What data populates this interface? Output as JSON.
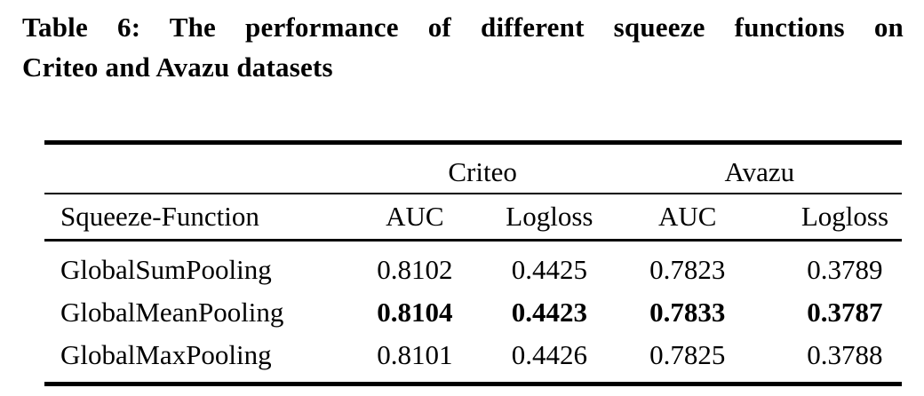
{
  "title": {
    "line1": "Table 6: The performance of different squeeze functions on",
    "line2": "Criteo and Avazu datasets"
  },
  "table": {
    "group_headers": {
      "criteo": "Criteo",
      "avazu": "Avazu"
    },
    "column_headers": {
      "function": "Squeeze-Function",
      "criteo_auc": "AUC",
      "criteo_logloss": "Logloss",
      "avazu_auc": "AUC",
      "avazu_logloss": "Logloss"
    },
    "rows": [
      {
        "function": "GlobalSumPooling",
        "criteo_auc": "0.8102",
        "criteo_logloss": "0.4425",
        "avazu_auc": "0.7823",
        "avazu_logloss": "0.3789",
        "bold": false
      },
      {
        "function": "GlobalMeanPooling",
        "criteo_auc": "0.8104",
        "criteo_logloss": "0.4423",
        "avazu_auc": "0.7833",
        "avazu_logloss": "0.3787",
        "bold": true
      },
      {
        "function": "GlobalMaxPooling",
        "criteo_auc": "0.8101",
        "criteo_logloss": "0.4426",
        "avazu_auc": "0.7825",
        "avazu_logloss": "0.3788",
        "bold": false
      }
    ]
  },
  "colors": {
    "text": "#000000",
    "background": "#ffffff",
    "rule": "#000000"
  }
}
